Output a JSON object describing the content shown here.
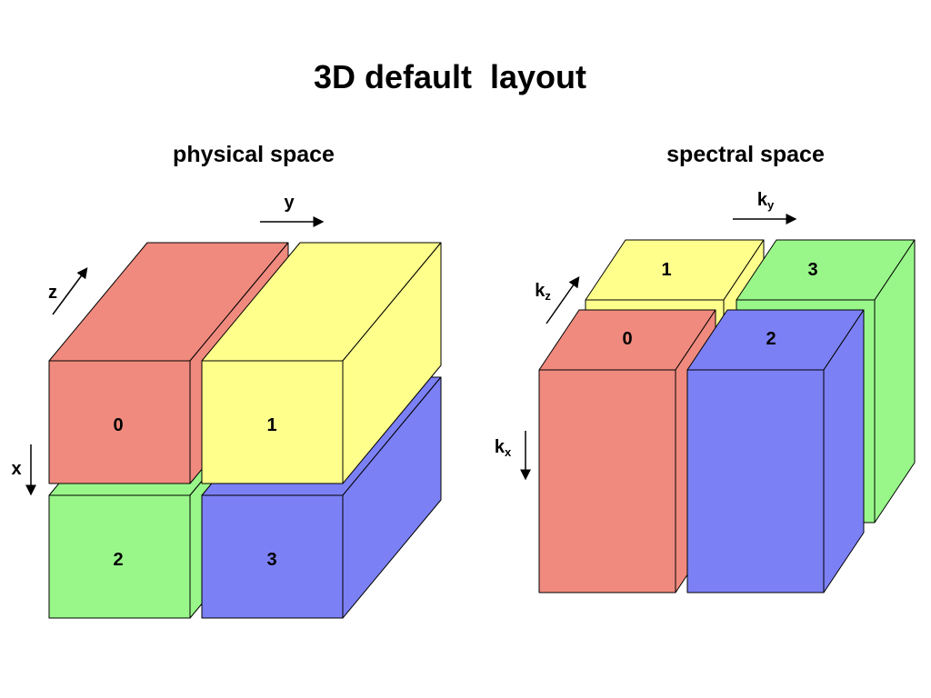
{
  "title": "3D default  layout",
  "physical": {
    "heading": "physical space",
    "axes": {
      "x": "x",
      "y": "y",
      "z": "z"
    },
    "blocks": [
      {
        "label": "0",
        "color": "#f08a7e"
      },
      {
        "label": "1",
        "color": "#ffff8c"
      },
      {
        "label": "2",
        "color": "#99f78a"
      },
      {
        "label": "3",
        "color": "#7c80f5"
      }
    ]
  },
  "spectral": {
    "heading": "spectral space",
    "axes": {
      "kx": {
        "base": "k",
        "sub": "x"
      },
      "ky": {
        "base": "k",
        "sub": "y"
      },
      "kz": {
        "base": "k",
        "sub": "z"
      }
    },
    "blocks": [
      {
        "label": "0",
        "color": "#f08a7e"
      },
      {
        "label": "1",
        "color": "#ffff8c"
      },
      {
        "label": "2",
        "color": "#7c80f5"
      },
      {
        "label": "3",
        "color": "#99f78a"
      }
    ]
  }
}
